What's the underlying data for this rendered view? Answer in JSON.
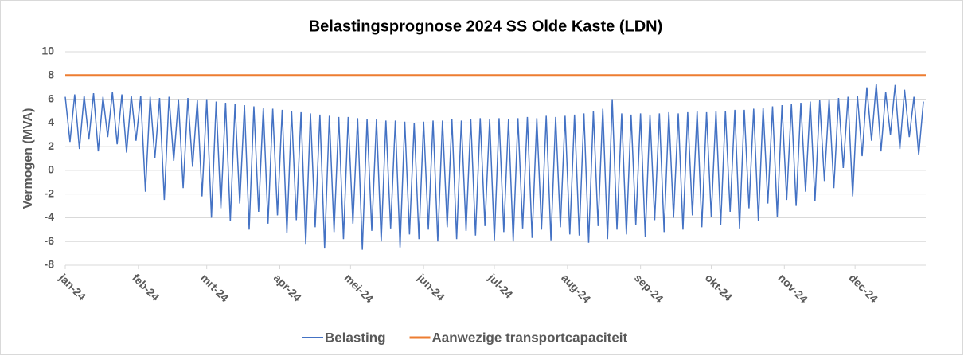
{
  "chart_data": {
    "type": "line",
    "title": "Belastingsprognose 2024 SS Olde Kaste (LDN)",
    "y_label": "Vermogen (MVA)",
    "xlim": [
      0,
      365
    ],
    "xticks": [
      {
        "value": 0,
        "label": "jan-24"
      },
      {
        "value": 31,
        "label": "feb-24"
      },
      {
        "value": 60,
        "label": "mrt-24"
      },
      {
        "value": 91,
        "label": "apr-24"
      },
      {
        "value": 121,
        "label": "mei-24"
      },
      {
        "value": 152,
        "label": "jun-24"
      },
      {
        "value": 182,
        "label": "jul-24"
      },
      {
        "value": 213,
        "label": "aug-24"
      },
      {
        "value": 244,
        "label": "sep-24"
      },
      {
        "value": 274,
        "label": "okt-24"
      },
      {
        "value": 305,
        "label": "nov-24"
      },
      {
        "value": 335,
        "label": "dec-24"
      }
    ],
    "ylim": [
      -8,
      10
    ],
    "yticks": [
      -8,
      -6,
      -4,
      -2,
      0,
      2,
      4,
      6,
      8,
      10
    ],
    "grid": true,
    "legend": "bottom",
    "series": [
      {
        "name": "Belasting",
        "color": "#4472c4",
        "x": [
          0,
          2,
          4,
          6,
          8,
          10,
          12,
          14,
          16,
          18,
          20,
          22,
          24,
          26,
          28,
          30,
          32,
          34,
          36,
          38,
          40,
          42,
          44,
          46,
          48,
          50,
          52,
          54,
          56,
          58,
          60,
          62,
          64,
          66,
          68,
          70,
          72,
          74,
          76,
          78,
          80,
          82,
          84,
          86,
          88,
          90,
          92,
          94,
          96,
          98,
          100,
          102,
          104,
          106,
          108,
          110,
          112,
          114,
          116,
          118,
          120,
          122,
          124,
          126,
          128,
          130,
          132,
          134,
          136,
          138,
          140,
          142,
          144,
          146,
          148,
          150,
          152,
          154,
          156,
          158,
          160,
          162,
          164,
          166,
          168,
          170,
          172,
          174,
          176,
          178,
          180,
          182,
          184,
          186,
          188,
          190,
          192,
          194,
          196,
          198,
          200,
          202,
          204,
          206,
          208,
          210,
          212,
          214,
          216,
          218,
          220,
          222,
          224,
          226,
          228,
          230,
          232,
          234,
          236,
          238,
          240,
          242,
          244,
          246,
          248,
          250,
          252,
          254,
          256,
          258,
          260,
          262,
          264,
          266,
          268,
          270,
          272,
          274,
          276,
          278,
          280,
          282,
          284,
          286,
          288,
          290,
          292,
          294,
          296,
          298,
          300,
          302,
          304,
          306,
          308,
          310,
          312,
          314,
          316,
          318,
          320,
          322,
          324,
          326,
          328,
          330,
          332,
          334,
          336,
          338,
          340,
          342,
          344,
          346,
          348,
          350,
          352,
          354,
          356,
          358,
          360,
          362,
          364
        ],
        "values": [
          6.2,
          2.4,
          6.4,
          1.8,
          6.3,
          2.6,
          6.5,
          1.6,
          6.2,
          2.8,
          6.6,
          2.2,
          6.4,
          1.5,
          6.3,
          2.5,
          6.3,
          -1.8,
          6.2,
          1.0,
          6.1,
          -2.5,
          6.2,
          0.8,
          6.0,
          -1.5,
          6.1,
          0.3,
          5.9,
          -2.2,
          6.0,
          -4.0,
          5.8,
          -3.2,
          5.7,
          -4.3,
          5.6,
          -2.8,
          5.5,
          -5.0,
          5.4,
          -3.5,
          5.3,
          -4.5,
          5.2,
          -3.8,
          5.1,
          -5.3,
          5.0,
          -4.2,
          4.9,
          -6.2,
          4.8,
          -4.8,
          4.7,
          -6.6,
          4.6,
          -5.2,
          4.5,
          -5.8,
          4.5,
          -4.5,
          4.4,
          -6.7,
          4.3,
          -5.1,
          4.3,
          -6.0,
          4.2,
          -4.9,
          4.2,
          -6.5,
          4.1,
          -5.4,
          4.0,
          -5.8,
          4.1,
          -5.0,
          4.2,
          -6.0,
          4.2,
          -4.8,
          4.3,
          -5.8,
          4.2,
          -5.1,
          4.3,
          -5.5,
          4.4,
          -4.7,
          4.3,
          -5.9,
          4.4,
          -5.2,
          4.3,
          -6.0,
          4.4,
          -4.9,
          4.5,
          -5.7,
          4.4,
          -5.0,
          4.6,
          -5.9,
          4.5,
          -4.8,
          4.6,
          -5.4,
          4.7,
          -5.5,
          4.8,
          -6.1,
          5.0,
          -4.7,
          5.2,
          -5.8,
          6.0,
          -5.0,
          4.8,
          -5.4,
          4.7,
          -4.6,
          4.8,
          -5.6,
          4.7,
          -4.2,
          4.8,
          -5.2,
          4.9,
          -4.0,
          4.8,
          -5.0,
          4.9,
          -3.8,
          5.0,
          -4.8,
          4.9,
          -3.9,
          5.0,
          -4.6,
          5.0,
          -3.5,
          5.1,
          -4.9,
          5.1,
          -3.2,
          5.2,
          -4.3,
          5.3,
          -2.8,
          5.4,
          -3.9,
          5.5,
          -2.5,
          5.6,
          -3.0,
          5.7,
          -1.8,
          5.8,
          -2.6,
          5.9,
          -0.9,
          6.0,
          -1.5,
          6.1,
          0.2,
          6.2,
          -2.2,
          6.3,
          1.2,
          7.0,
          2.5,
          7.3,
          1.6,
          6.6,
          3.0,
          7.2,
          1.8,
          6.8,
          2.8,
          6.2,
          1.3,
          5.8
        ]
      },
      {
        "name": "Aanwezige transportcapaciteit",
        "color": "#ed7d31",
        "x": [
          0,
          365
        ],
        "values": [
          8,
          8
        ]
      }
    ]
  }
}
